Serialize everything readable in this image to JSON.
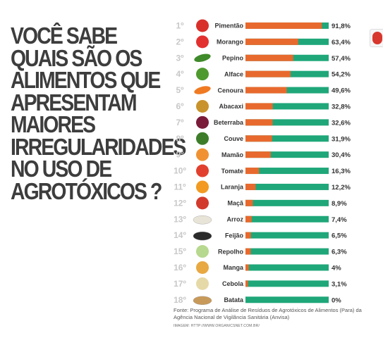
{
  "headline": {
    "lines": [
      "VOCÊ SABE",
      "QUAIS SÃO OS",
      "ALIMENTOS QUE",
      "APRESENTAM",
      "MAIORES",
      "IRREGULARIDADES",
      "NO USO DE",
      "AGROTÓXICOS ?"
    ]
  },
  "chart_data": {
    "type": "bar",
    "orientation": "horizontal",
    "stacked_percent": true,
    "categories": [
      "Pimentão",
      "Morango",
      "Pepino",
      "Alface",
      "Cenoura",
      "Abacaxi",
      "Beterraba",
      "Couve",
      "Mamão",
      "Tomate",
      "Laranja",
      "Maçã",
      "Arroz",
      "Feijão",
      "Repolho",
      "Manga",
      "Cebola",
      "Batata"
    ],
    "ranks": [
      "1º",
      "2º",
      "3º",
      "4º",
      "5º",
      "6º",
      "7º",
      "8º",
      "9º",
      "10º",
      "11º",
      "12º",
      "13º",
      "14º",
      "15º",
      "16º",
      "17º",
      "18º"
    ],
    "values": [
      91.8,
      63.4,
      57.4,
      54.2,
      49.6,
      32.8,
      32.6,
      31.9,
      30.4,
      16.3,
      12.2,
      8.9,
      7.4,
      6.5,
      6.3,
      4,
      3.1,
      0
    ],
    "value_labels": [
      "91,8%",
      "63,4%",
      "57,4%",
      "54,2%",
      "49,6%",
      "32,8%",
      "32,6%",
      "31,9%",
      "30,4%",
      "16,3%",
      "12,2%",
      "8,9%",
      "7,4%",
      "6,5%",
      "6,3%",
      "4%",
      "3,1%",
      "0%"
    ],
    "ylim": [
      0,
      100
    ],
    "colors": {
      "irregular": "#e8692d",
      "regular": "#1fa77a"
    },
    "food_icons": [
      "pepper-icon",
      "strawberry-icon",
      "cucumber-icon",
      "lettuce-icon",
      "carrot-icon",
      "pineapple-icon",
      "beet-icon",
      "kale-icon",
      "papaya-icon",
      "tomato-icon",
      "orange-icon",
      "apple-icon",
      "rice-icon",
      "beans-icon",
      "cabbage-icon",
      "mango-icon",
      "onion-icon",
      "potato-icon"
    ],
    "icon_colors": [
      "#d92f2a",
      "#e2302f",
      "#3f8a2a",
      "#4f9a2e",
      "#f07a22",
      "#c9932b",
      "#7a1b3a",
      "#3d7d2a",
      "#f09232",
      "#e2402e",
      "#f29a22",
      "#d23a2c",
      "#e8e4d8",
      "#2b2b2b",
      "#b7d88f",
      "#e8a842",
      "#e6d9a8",
      "#c89a5a"
    ]
  },
  "source": "Fonte: Programa de Análise de Resíduos de Agrotóxicos de Alimentos (Para) da Agência Nacional de Vigilância Sanitária (Anvisa)",
  "image_credit": "IMAGEM: HTTP://WWW.ORGANICSNET.COM.BR/"
}
